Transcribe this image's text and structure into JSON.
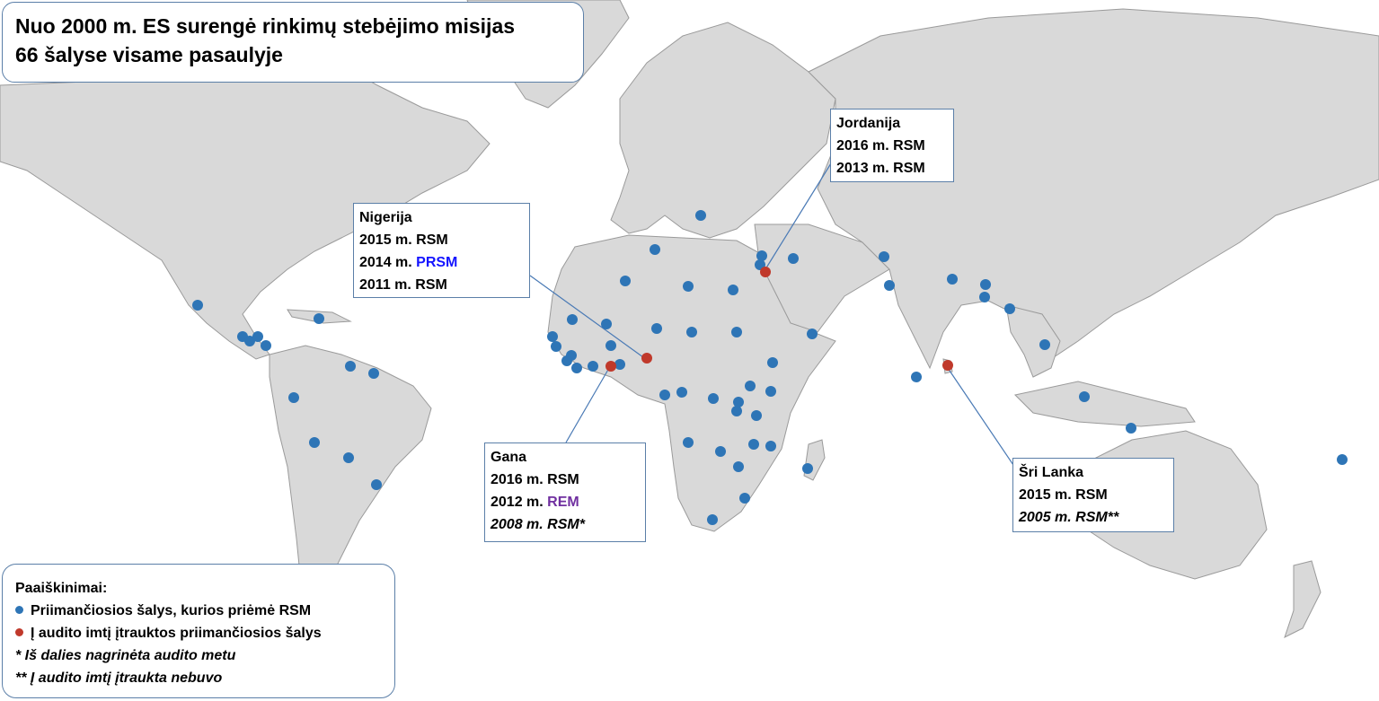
{
  "title": {
    "line1": "Nuo 2000 m. ES surengė rinkimų stebėjimo misijas",
    "line2": "66 šalyse  visame pasaulyje"
  },
  "colors": {
    "land": "#d9d9d9",
    "border": "#9a9a9a",
    "observed_dot": "#2e75b6",
    "audited_dot": "#c0392b",
    "prsm_text": "#1414ff",
    "rem_text": "#7030a0"
  },
  "callouts": {
    "nigerija": {
      "name": "Nigerija",
      "l1": "2015 m. RSM",
      "l2_prefix": "2014 m. ",
      "l2_tag": "PRSM",
      "l3": "2011 m. RSM"
    },
    "jordanija": {
      "name": "Jordanija",
      "l1": "2016 m. RSM",
      "l2": "2013 m. RSM"
    },
    "gana": {
      "name": "Gana",
      "l1": "2016 m. RSM",
      "l2_prefix": "2012 m. ",
      "l2_tag": "REM",
      "l3": "2008 m. RSM*"
    },
    "sri_lanka": {
      "name": "Šri Lanka",
      "l1": "2015 m. RSM",
      "l2": "2005 m. RSM**"
    }
  },
  "legend": {
    "heading": "Paaiškinimai:",
    "observed": "Priimančiosios šalys, kurios priėmė RSM",
    "audited": "Į audito imtį įtrauktos priimančiosios šalys",
    "note1": "* Iš dalies nagrinėta audito metu",
    "note2": "** Į audito imtį įtraukta nebuvo"
  }
}
